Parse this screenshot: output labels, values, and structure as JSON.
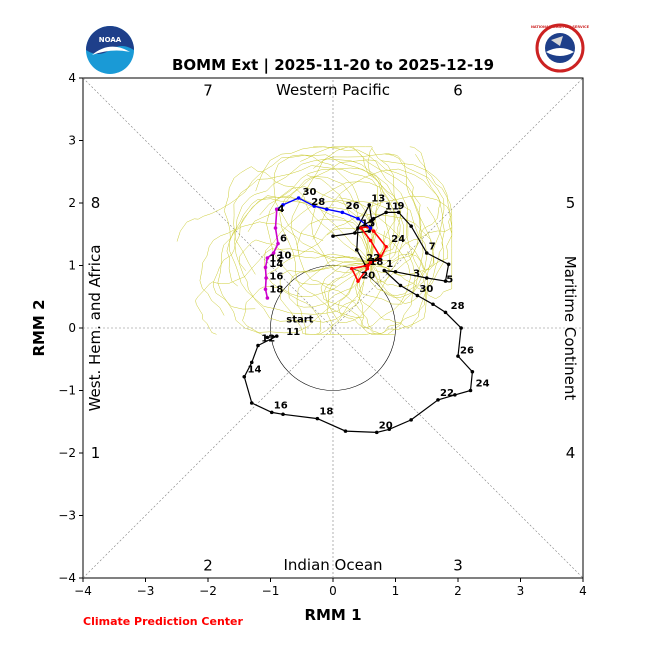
{
  "chart_data": {
    "type": "line",
    "title": "BOMM Ext | 2025-11-20 to 2025-12-19",
    "xlabel": "RMM 1",
    "ylabel": "RMM 2",
    "xlim": [
      -4,
      4
    ],
    "ylim": [
      -4,
      4
    ],
    "xticks": [
      -4,
      -3,
      -2,
      -1,
      0,
      1,
      2,
      3,
      4
    ],
    "yticks": [
      -4,
      -3,
      -2,
      -1,
      0,
      1,
      2,
      3,
      4
    ],
    "xtick_labels": [
      "−4",
      "−3",
      "−2",
      "−1",
      "0",
      "1",
      "2",
      "3",
      "4"
    ],
    "ytick_labels": [
      "−4",
      "−3",
      "−2",
      "−1",
      "0",
      "1",
      "2",
      "3",
      "4"
    ],
    "region_labels": {
      "top": "Western Pacific",
      "bottom": "Indian Ocean",
      "left": "West. Hem. and Africa",
      "right": "Maritime Continent"
    },
    "phase_labels": [
      {
        "text": "1",
        "x": -3.8,
        "y": -2.0
      },
      {
        "text": "2",
        "x": -2.0,
        "y": -3.8
      },
      {
        "text": "3",
        "x": 2.0,
        "y": -3.8
      },
      {
        "text": "4",
        "x": 3.8,
        "y": -2.0
      },
      {
        "text": "5",
        "x": 3.8,
        "y": 2.0
      },
      {
        "text": "6",
        "x": 2.0,
        "y": 3.8
      },
      {
        "text": "7",
        "x": -2.0,
        "y": 3.8
      },
      {
        "text": "8",
        "x": -3.8,
        "y": 2.0
      }
    ],
    "colors": {
      "observed": "#000000",
      "forecast_red": "#ff0000",
      "forecast_blue": "#0000ff",
      "forecast_magenta": "#cc00cc",
      "ensemble": "#cccc33",
      "credit": "#ff0000"
    },
    "observed": {
      "points": [
        [
          -1.05,
          -0.15
        ],
        [
          -0.9,
          -0.13
        ],
        [
          -1.2,
          -0.28
        ],
        [
          -1.3,
          -0.55
        ],
        [
          -1.42,
          -0.78
        ],
        [
          -1.3,
          -1.2
        ],
        [
          -0.98,
          -1.35
        ],
        [
          -0.8,
          -1.38
        ],
        [
          -0.25,
          -1.45
        ],
        [
          0.2,
          -1.65
        ],
        [
          0.7,
          -1.67
        ],
        [
          0.9,
          -1.62
        ],
        [
          1.25,
          -1.47
        ],
        [
          1.68,
          -1.15
        ],
        [
          1.95,
          -1.07
        ],
        [
          2.2,
          -1.0
        ],
        [
          2.23,
          -0.7
        ],
        [
          2.0,
          -0.45
        ],
        [
          2.05,
          0.0
        ],
        [
          1.8,
          0.25
        ],
        [
          1.6,
          0.38
        ],
        [
          1.35,
          0.52
        ],
        [
          1.08,
          0.68
        ],
        [
          0.82,
          0.92
        ],
        [
          1.0,
          0.9
        ],
        [
          1.5,
          0.8
        ],
        [
          1.8,
          0.75
        ],
        [
          1.85,
          1.02
        ],
        [
          1.5,
          1.2
        ],
        [
          1.25,
          1.63
        ],
        [
          1.05,
          1.85
        ],
        [
          0.85,
          1.85
        ],
        [
          0.65,
          1.75
        ],
        [
          0.58,
          1.55
        ],
        [
          0.0,
          1.47
        ],
        [
          0.35,
          1.52
        ],
        [
          0.58,
          1.97
        ],
        [
          0.62,
          1.72
        ],
        [
          0.4,
          1.6
        ],
        [
          0.38,
          1.25
        ],
        [
          0.52,
          1.0
        ],
        [
          0.6,
          1.05
        ]
      ],
      "labels": [
        {
          "text": "start",
          "x": -0.78,
          "y": 0.07
        },
        {
          "text": "11",
          "x": -0.78,
          "y": -0.13
        },
        {
          "text": "12",
          "x": -1.18,
          "y": -0.23
        },
        {
          "text": "14",
          "x": -1.4,
          "y": -0.73
        },
        {
          "text": "16",
          "x": -0.98,
          "y": -1.3
        },
        {
          "text": "18",
          "x": -0.25,
          "y": -1.4
        },
        {
          "text": "20",
          "x": 0.7,
          "y": -1.62
        },
        {
          "text": "22",
          "x": 1.68,
          "y": -1.1
        },
        {
          "text": "24",
          "x": 2.25,
          "y": -0.95
        },
        {
          "text": "26",
          "x": 2.0,
          "y": -0.42
        },
        {
          "text": "28",
          "x": 1.85,
          "y": 0.29
        },
        {
          "text": "30",
          "x": 1.35,
          "y": 0.56
        },
        {
          "text": "1",
          "x": 0.82,
          "y": 0.96
        },
        {
          "text": "3",
          "x": 1.25,
          "y": 0.81
        },
        {
          "text": "5",
          "x": 1.78,
          "y": 0.71
        },
        {
          "text": "7",
          "x": 1.5,
          "y": 1.24
        },
        {
          "text": "9",
          "x": 1.0,
          "y": 1.89
        },
        {
          "text": "11",
          "x": 0.8,
          "y": 1.88
        },
        {
          "text": "13",
          "x": 0.58,
          "y": 2.01
        },
        {
          "text": "15",
          "x": 0.42,
          "y": 1.61
        }
      ]
    },
    "forecast_red": {
      "points": [
        [
          0.6,
          1.05
        ],
        [
          0.75,
          1.1
        ],
        [
          0.85,
          1.3
        ],
        [
          0.65,
          1.55
        ],
        [
          0.55,
          1.62
        ],
        [
          0.45,
          1.6
        ],
        [
          0.6,
          1.4
        ],
        [
          0.75,
          1.15
        ],
        [
          0.55,
          1.0
        ],
        [
          0.3,
          0.95
        ],
        [
          0.4,
          0.75
        ],
        [
          0.55,
          0.95
        ],
        [
          0.6,
          1.05
        ]
      ],
      "labels": [
        {
          "text": "22",
          "x": 0.5,
          "y": 1.06
        },
        {
          "text": "24",
          "x": 0.9,
          "y": 1.36
        },
        {
          "text": "20",
          "x": 0.42,
          "y": 0.78
        },
        {
          "text": "18",
          "x": 0.55,
          "y": 0.99
        }
      ]
    },
    "forecast_blue": {
      "points": [
        [
          0.6,
          1.6
        ],
        [
          0.4,
          1.75
        ],
        [
          0.15,
          1.85
        ],
        [
          -0.1,
          1.9
        ],
        [
          -0.3,
          1.95
        ],
        [
          -0.55,
          2.08
        ],
        [
          -0.8,
          1.97
        ],
        [
          -0.9,
          1.9
        ]
      ],
      "labels": [
        {
          "text": "26",
          "x": 0.17,
          "y": 1.89
        },
        {
          "text": "28",
          "x": -0.38,
          "y": 1.95
        },
        {
          "text": "30",
          "x": -0.52,
          "y": 2.11
        }
      ]
    },
    "forecast_magenta": {
      "points": [
        [
          -0.9,
          1.9
        ],
        [
          -0.92,
          1.6
        ],
        [
          -0.88,
          1.35
        ],
        [
          -0.95,
          1.2
        ],
        [
          -1.05,
          1.12
        ],
        [
          -1.08,
          0.97
        ],
        [
          -1.07,
          0.8
        ],
        [
          -1.08,
          0.62
        ],
        [
          -1.05,
          0.48
        ]
      ],
      "labels": [
        {
          "text": "4",
          "x": -0.92,
          "y": 1.84
        },
        {
          "text": "6",
          "x": -0.88,
          "y": 1.37
        },
        {
          "text": "10",
          "x": -0.92,
          "y": 1.1
        },
        {
          "text": "12",
          "x": -1.05,
          "y": 1.05
        },
        {
          "text": "14",
          "x": -1.05,
          "y": 0.96
        },
        {
          "text": "16",
          "x": -1.05,
          "y": 0.76
        },
        {
          "text": "18",
          "x": -1.05,
          "y": 0.55
        }
      ]
    },
    "ensemble_member_count": 40,
    "unit_circle_radius": 1,
    "grid": "diagonal-phase-lines"
  },
  "footer": {
    "credit": "Climate Prediction Center"
  },
  "logos": {
    "left": "NOAA",
    "right": "NATIONAL WEATHER SERVICE"
  }
}
